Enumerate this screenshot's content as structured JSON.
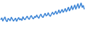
{
  "chart_data": {
    "type": "line",
    "color": "#3d85d6",
    "tick_labels": false,
    "grid": false,
    "x": [
      1,
      2,
      3,
      4,
      5,
      6,
      7,
      8,
      9,
      10,
      11,
      12,
      13,
      14,
      15,
      16,
      17,
      18,
      19,
      20,
      21,
      22,
      23,
      24,
      25,
      26,
      27,
      28,
      29,
      30,
      31,
      32,
      33,
      34,
      35,
      36,
      37,
      38,
      39,
      40,
      41,
      42,
      43,
      44,
      45,
      46,
      47,
      48,
      49,
      50,
      51,
      52,
      53,
      54,
      55,
      56,
      57,
      58,
      59,
      60,
      61,
      62,
      63,
      64,
      65,
      66,
      67,
      68,
      69,
      70,
      71,
      72,
      73,
      74,
      75,
      76,
      77,
      78,
      79,
      80
    ],
    "values": [
      35,
      42,
      30,
      38,
      45,
      33,
      28,
      40,
      36,
      31,
      44,
      38,
      30,
      35,
      41,
      29,
      37,
      43,
      34,
      39,
      32,
      46,
      38,
      35,
      42,
      48,
      40,
      36,
      45,
      50,
      41,
      38,
      47,
      43,
      52,
      45,
      40,
      49,
      55,
      46,
      43,
      51,
      58,
      48,
      52,
      60,
      50,
      47,
      56,
      62,
      53,
      58,
      66,
      55,
      60,
      70,
      58,
      64,
      72,
      61,
      67,
      75,
      63,
      70,
      80,
      66,
      74,
      85,
      70,
      78,
      88,
      72,
      82,
      92,
      75,
      84,
      95,
      78,
      86,
      72
    ],
    "xlim": [
      1,
      80
    ],
    "ylim": [
      0,
      100
    ]
  }
}
